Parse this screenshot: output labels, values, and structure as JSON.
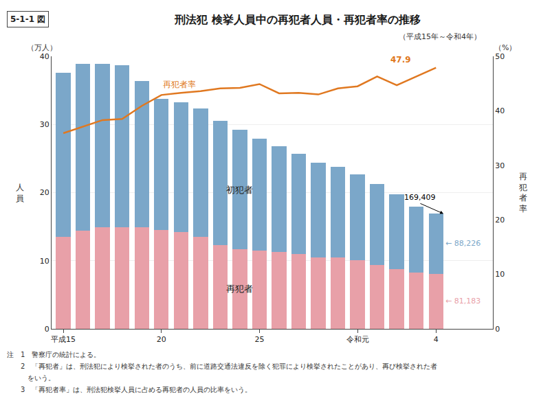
{
  "chart_data": {
    "type": "bar",
    "stacked": true,
    "title": "刑法犯 検挙人員中の再犯者人員・再犯者率の推移",
    "subtitle": "5-1-1 図",
    "period_note": "（平成15年～令和4年）",
    "y_unit": "（万人）",
    "y2_unit": "（%）",
    "ylabel": "人員",
    "y2label": "再犯者率",
    "categories": [
      "平成15",
      null,
      null,
      null,
      null,
      "20",
      null,
      null,
      null,
      null,
      "25",
      null,
      null,
      null,
      null,
      "令和元",
      null,
      null,
      null,
      "4"
    ],
    "series": [
      {
        "name": "再犯者",
        "type": "bar",
        "color": "#E8A0A8",
        "values": [
          13.5,
          14.4,
          14.9,
          14.9,
          14.9,
          14.5,
          14.2,
          13.5,
          12.3,
          11.7,
          11.5,
          11.3,
          11.0,
          10.5,
          10.5,
          10.1,
          9.4,
          8.8,
          8.3,
          8.1
        ],
        "end_label": "← 81,183"
      },
      {
        "name": "初犯者",
        "type": "bar",
        "color": "#7BA7C9",
        "values": [
          24.1,
          24.5,
          24.0,
          23.8,
          21.5,
          19.3,
          19.1,
          18.8,
          18.2,
          17.5,
          16.4,
          15.5,
          14.7,
          13.9,
          13.3,
          12.6,
          11.9,
          10.9,
          9.6,
          8.8
        ],
        "end_label": "← 88,226"
      },
      {
        "name": "再犯者率",
        "type": "line",
        "axis": "y2",
        "color": "#E07820",
        "values": [
          35.9,
          37.1,
          38.3,
          38.5,
          40.9,
          42.9,
          43.3,
          43.6,
          44.1,
          44.2,
          44.9,
          43.2,
          43.3,
          43.0,
          44.1,
          44.5,
          46.3,
          44.7,
          46.3,
          47.9
        ],
        "end_label": "47.9"
      }
    ],
    "total_label": "169,409",
    "ylim": [
      0,
      40
    ],
    "yticks": [
      0,
      10,
      20,
      30,
      40
    ],
    "y2lim": [
      0,
      50
    ],
    "y2ticks": [
      0,
      10,
      20,
      30,
      40,
      50
    ],
    "grid": true,
    "notes": [
      "注　1　警察庁の統計による。",
      "　　2　「再犯者」は、刑法犯により検挙された者のうち、前に道路交通法違反を除く犯罪により検挙されたことがあり、再び検挙された者",
      "　　　をいう。",
      "　　3　「再犯者率」は、刑法犯検挙人員に占める再犯者の人員の比率をいう。"
    ]
  }
}
